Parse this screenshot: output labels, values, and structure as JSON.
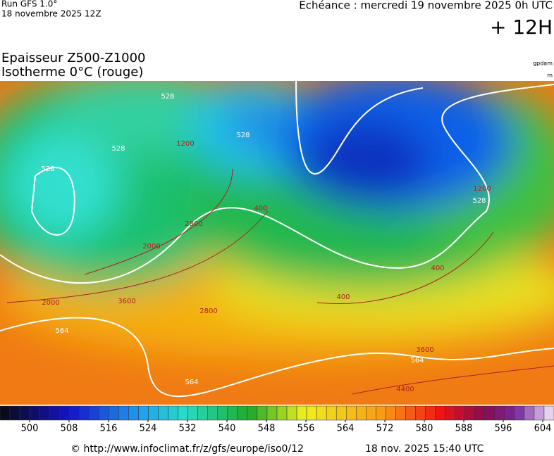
{
  "header": {
    "run": "Run GFS 1.0°",
    "run_date": "18 novembre 2025 12Z",
    "valid": "Echéance : mercredi 19 novembre 2025 0h UTC",
    "lead": "+ 12H"
  },
  "legend": {
    "title1": "Epaisseur Z500-Z1000",
    "title2": "Isotherme 0°C (rouge)",
    "unit1": "gpdam",
    "unit2": "m"
  },
  "map": {
    "labels": [
      "528",
      "528",
      "528",
      "528",
      "528",
      "564",
      "564",
      "564",
      "1200",
      "1200",
      "2000",
      "2000",
      "2800",
      "2800",
      "3600",
      "3600",
      "400",
      "400",
      "400",
      "4400"
    ]
  },
  "colorbar": {
    "ticks": [
      500,
      508,
      516,
      524,
      532,
      540,
      548,
      556,
      564,
      572,
      580,
      588,
      596,
      604
    ]
  },
  "footer": {
    "source": "© http://www.infoclimat.fr/z/gfs/europe/iso0/12",
    "generated": "18 nov. 2025 15:40 UTC"
  }
}
